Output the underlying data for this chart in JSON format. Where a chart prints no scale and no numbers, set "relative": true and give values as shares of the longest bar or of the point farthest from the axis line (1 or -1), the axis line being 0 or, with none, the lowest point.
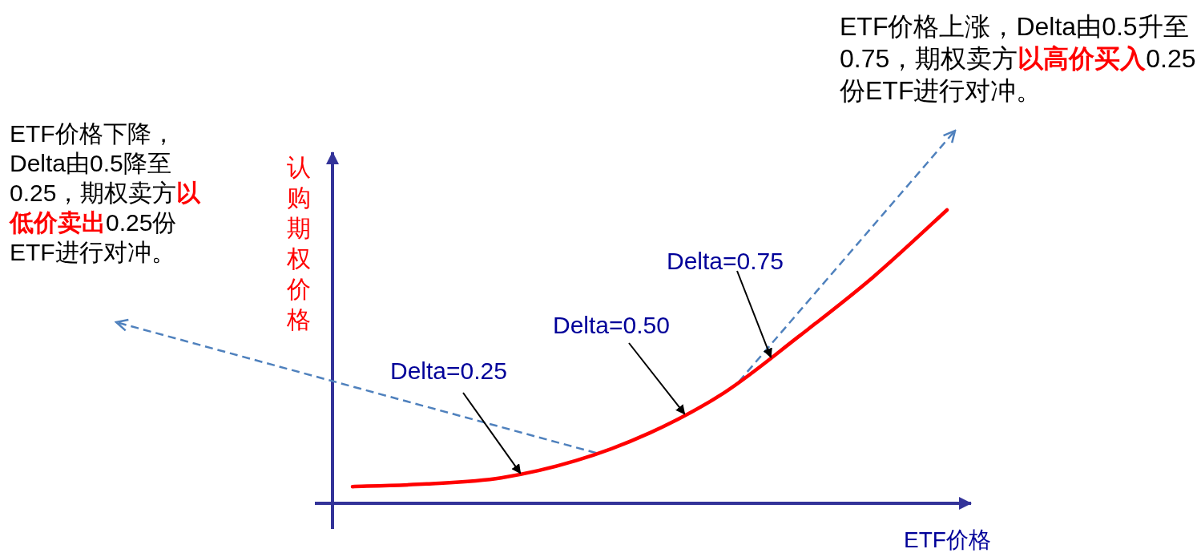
{
  "chart_data": {
    "type": "line",
    "relative": true,
    "xlabel": "ETF价格",
    "ylabel": "认购期权价格",
    "categories": [
      null,
      null,
      null,
      null,
      null,
      null,
      null,
      null,
      null
    ],
    "series": [
      {
        "color": "#ff0000",
        "values": [
          0.057,
          0.066,
          0.087,
          0.145,
          0.24,
          0.377,
          0.568,
          0.77,
          1
        ]
      }
    ],
    "marker": "none",
    "line_style": "solid",
    "annotations": [
      "Delta=0.25",
      "Delta=0.50",
      "Delta=0.75",
      "ETF价格下降，Delta由0.5降至0.25，期权卖方",
      "以低价卖出",
      "0.25份ETF进行对冲。",
      "ETF价格上涨，Delta由0.5升至0.75，期权卖方",
      "以高价买入",
      "0.25份ETF进行对冲。"
    ]
  }
}
